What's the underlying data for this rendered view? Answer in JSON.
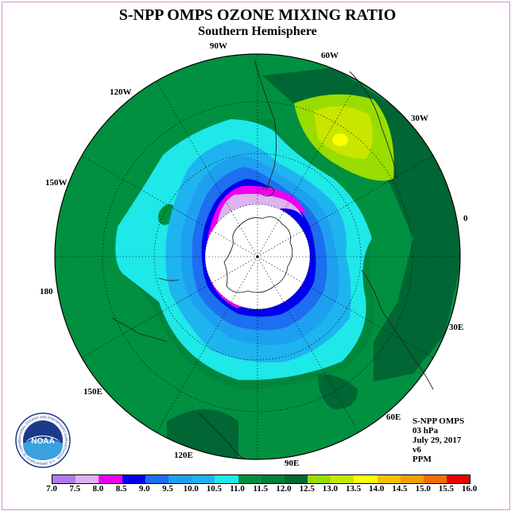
{
  "title": "S-NPP OMPS OZONE MIXING RATIO",
  "subtitle": "Southern Hemisphere",
  "longitude_labels": {
    "w90": "90W",
    "w60": "60W",
    "w30": "30W",
    "w120": "120W",
    "w150": "150W",
    "e0": "0",
    "d180": "180",
    "e30": "30E",
    "e150": "150E",
    "e60": "60E",
    "e120": "120E",
    "e90": "90E"
  },
  "info": {
    "instrument": "S-NPP OMPS",
    "level": "03 hPa",
    "date": "July 29, 2017",
    "version": "v6",
    "units": "PPM"
  },
  "colorbar": {
    "colors": [
      "#b07be8",
      "#dcb4f0",
      "#ee00ee",
      "#0000ee",
      "#1e6ef0",
      "#1ea0f0",
      "#1eb4f0",
      "#1ee8e8",
      "#009040",
      "#00803a",
      "#006633",
      "#99dd00",
      "#c8e600",
      "#ffff00",
      "#f0c400",
      "#f0a000",
      "#f07000",
      "#ee0000",
      "#8b5a3c"
    ],
    "tick_labels": [
      "7.0",
      "7.5",
      "8.0",
      "8.5",
      "9.0",
      "9.5",
      "10.0",
      "10.5",
      "11.0",
      "11.5",
      "12.0",
      "12.5",
      "13.0",
      "13.5",
      "14.0",
      "14.5",
      "15.0",
      "15.5",
      "16.0"
    ]
  },
  "logo": {
    "text": "NOAA",
    "ring_text": "NATIONAL OCEANIC AND ATMOSPHERIC ADMINISTRATION · U.S. DEPARTMENT OF COMMERCE"
  }
}
